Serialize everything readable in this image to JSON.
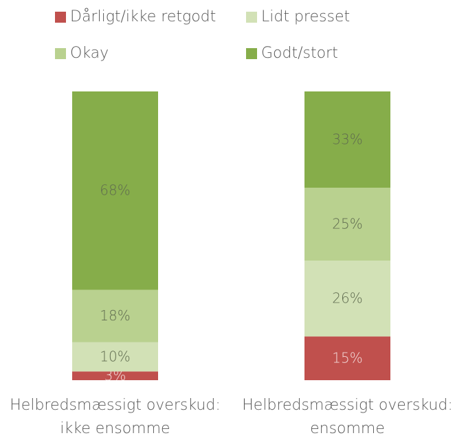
{
  "chart_data": {
    "type": "stacked-bar",
    "categories": [
      "Helbredsmæssigt overskud: ikke ensomme",
      "Helbredsmæssigt overskud: ensomme"
    ],
    "series": [
      {
        "name": "Dårligt/ikke retgodt",
        "color": "#c0504d",
        "values": [
          3,
          15
        ],
        "value_labels": [
          "3%",
          "15%"
        ]
      },
      {
        "name": "Lidt presset",
        "color": "#d2e1b6",
        "values": [
          10,
          26
        ],
        "value_labels": [
          "10%",
          "26%"
        ]
      },
      {
        "name": "Okay",
        "color": "#b9d18f",
        "values": [
          18,
          25
        ],
        "value_labels": [
          "18%",
          "25%"
        ]
      },
      {
        "name": "Godt/stort",
        "color": "#86ad4a",
        "values": [
          68,
          33
        ],
        "value_labels": [
          "68%",
          "33%"
        ]
      }
    ]
  }
}
